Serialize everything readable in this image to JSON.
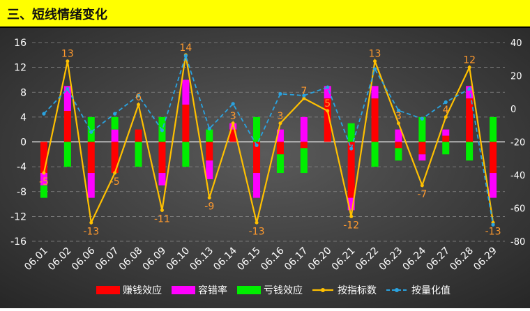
{
  "header": {
    "title": "三、短线情绪变化"
  },
  "chart_data": {
    "type": "bar+line",
    "categories": [
      "06.01",
      "06.02",
      "06.06",
      "06.07",
      "06.08",
      "06.09",
      "06.10",
      "06.13",
      "06.14",
      "06.15",
      "06.16",
      "06.17",
      "06.20",
      "06.21",
      "06.22",
      "06.23",
      "06.24",
      "06.27",
      "06.28",
      "06.29"
    ],
    "bars": [
      {
        "name": "赚钱效应",
        "color": "#ff0000",
        "values": [
          -5,
          5,
          -5,
          -5,
          2,
          -5,
          6,
          -3,
          2,
          -5,
          -2,
          -1,
          7,
          -9,
          7,
          -1,
          -2,
          1,
          7,
          -5
        ]
      },
      {
        "name": "容错率",
        "color": "#ff00ff",
        "values": [
          -2,
          4,
          -4,
          2,
          0,
          -2,
          4,
          -3,
          1,
          -4,
          2,
          4,
          2,
          -2,
          2,
          2,
          -1,
          1,
          2,
          -4
        ]
      },
      {
        "name": "亏钱效应",
        "color": "#00ee00",
        "values": [
          -2,
          -4,
          4,
          2,
          -4,
          4,
          -4,
          2,
          0,
          4,
          -3,
          -4,
          0,
          3,
          -4,
          -2,
          4,
          -2,
          -3,
          4
        ]
      }
    ],
    "line_index": {
      "name": "按指标数",
      "color": "#ffc000",
      "values": [
        -5,
        13,
        -13,
        -5,
        6,
        -11,
        14,
        -9,
        3,
        -13,
        3,
        7,
        5,
        -12,
        13,
        3,
        -7,
        4,
        12,
        -13
      ]
    },
    "line_quant": {
      "name": "按量化值",
      "color": "#2aa3e0",
      "values": [
        -3,
        12,
        -14,
        -3,
        8,
        -13,
        32,
        -12,
        3,
        -22,
        9,
        8,
        13,
        -24,
        24,
        -1,
        -6,
        4,
        12,
        -70
      ]
    },
    "y_left": {
      "min": -16,
      "max": 16,
      "ticks": [
        -16,
        -12,
        -8,
        -4,
        0,
        4,
        8,
        12,
        16
      ]
    },
    "y_right": {
      "min": -80,
      "max": 40,
      "ticks": [
        -80,
        -60,
        -40,
        -20,
        0,
        20,
        40
      ]
    },
    "legend": "bottom"
  }
}
